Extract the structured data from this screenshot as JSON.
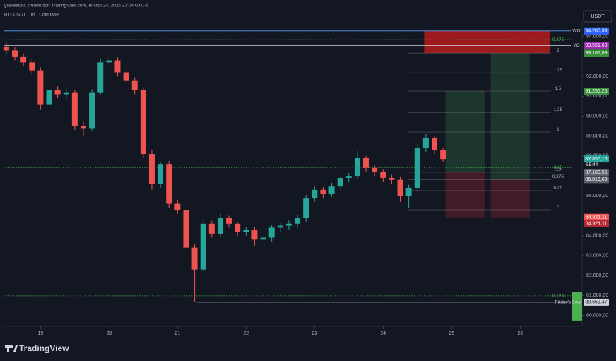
{
  "header": {
    "author_line": "yaslelstout creado con TradingView.com, el Nov 24, 2025 23:04 UTC-5",
    "symbol_line": "BTCUSDT · 1h · Coinbase",
    "currency": "USDT",
    "brand": "TradingView",
    "timer": "55:44"
  },
  "chart_data": {
    "type": "candlestick",
    "x": [
      18.5,
      18.625,
      18.75,
      18.875,
      19,
      19.125,
      19.25,
      19.375,
      19.5,
      19.625,
      19.75,
      19.875,
      20,
      20.125,
      20.25,
      20.375,
      20.5,
      20.625,
      20.75,
      20.875,
      21,
      21.125,
      21.25,
      21.375,
      21.5,
      21.625,
      21.75,
      21.875,
      22,
      22.125,
      22.25,
      22.375,
      22.5,
      22.625,
      22.75,
      22.875,
      23,
      23.125,
      23.25,
      23.375,
      23.5,
      23.625,
      23.75,
      23.875,
      24,
      24.125,
      24.25,
      24.375,
      24.5,
      24.625,
      24.75,
      24.875
    ],
    "open": [
      93500,
      93300,
      93000,
      92700,
      92300,
      90600,
      91300,
      91100,
      91200,
      89500,
      89400,
      91200,
      92700,
      92800,
      92200,
      91800,
      91300,
      88100,
      86600,
      87600,
      85600,
      85300,
      83400,
      82300,
      84600,
      84100,
      84900,
      84600,
      84200,
      84300,
      83800,
      83900,
      84400,
      84500,
      84600,
      84900,
      85900,
      86300,
      86100,
      86500,
      86900,
      87000,
      87900,
      87400,
      87200,
      86900,
      86800,
      86000,
      86400,
      88400,
      88900,
      88300
    ],
    "high": [
      93700,
      93450,
      93150,
      92850,
      92450,
      91500,
      91500,
      91400,
      91300,
      89700,
      91350,
      92850,
      93000,
      92950,
      92350,
      91950,
      91450,
      88300,
      87700,
      87750,
      85800,
      85450,
      83600,
      84850,
      84750,
      85100,
      85000,
      84700,
      84450,
      84450,
      84050,
      84550,
      84700,
      84750,
      85050,
      86050,
      86500,
      86450,
      86650,
      87050,
      87150,
      88250,
      88000,
      87550,
      87350,
      87050,
      86950,
      86550,
      88600,
      89100,
      89000,
      88400
    ],
    "low": [
      93100,
      92800,
      92500,
      92100,
      90350,
      90400,
      90900,
      90900,
      89300,
      89000,
      89250,
      91050,
      92500,
      92000,
      91600,
      91100,
      87900,
      86300,
      86400,
      85400,
      85100,
      83100,
      80659.47,
      82100,
      83900,
      83950,
      84400,
      84000,
      84000,
      83500,
      83600,
      83700,
      84200,
      84300,
      84400,
      84700,
      85700,
      85900,
      85950,
      86300,
      86700,
      86850,
      87200,
      87000,
      86700,
      86600,
      85700,
      85400,
      86200,
      88200,
      88100,
      87700
    ],
    "close": [
      93300,
      93000,
      92700,
      92300,
      90600,
      91300,
      91100,
      91200,
      89500,
      89400,
      91200,
      92700,
      92800,
      92200,
      91800,
      91300,
      88100,
      86600,
      87600,
      85600,
      85300,
      83400,
      82300,
      84600,
      84100,
      84900,
      84600,
      84200,
      84300,
      83800,
      83900,
      84400,
      84500,
      84600,
      84900,
      85900,
      86300,
      86100,
      86500,
      86900,
      87000,
      87900,
      87400,
      87200,
      86900,
      86800,
      86000,
      86400,
      88400,
      88900,
      88300,
      87850.16
    ],
    "up_color": "#26a69a",
    "down_color": "#ef5350",
    "xlim": [
      18.46,
      26.74
    ],
    "xticks": [
      19,
      20,
      21,
      22,
      23,
      24,
      25,
      26
    ],
    "ylim": [
      79450,
      94770
    ],
    "yticks": [
      {
        "value": 94000,
        "label": "94.000,00"
      },
      {
        "value": 92000,
        "label": "92.000,00"
      },
      {
        "value": 91000,
        "label": "91.000,00"
      },
      {
        "value": 90000,
        "label": "90.000,00"
      },
      {
        "value": 89000,
        "label": "89.000,00"
      },
      {
        "value": 88000,
        "label": "88.000,00"
      },
      {
        "value": 86000,
        "label": "86.000,00"
      },
      {
        "value": 84000,
        "label": "84.000,00"
      },
      {
        "value": 83000,
        "label": "83.000,00"
      },
      {
        "value": 82000,
        "label": "82.000,00"
      },
      {
        "value": 81000,
        "label": "81.000,00"
      },
      {
        "value": 80000,
        "label": "80.000,00"
      }
    ],
    "lines": [
      {
        "label": "WO",
        "value": 94280.99,
        "color": "#5b9cf6",
        "style": "solid"
      },
      {
        "label": "0,375",
        "value": 93844,
        "color": "#4caf50",
        "style": "dotted"
      },
      {
        "label": "YO",
        "value": 93551.63,
        "color": "#d1d4dc",
        "style": "solid"
      },
      {
        "label": "0,25",
        "value": 87420,
        "color": "#4caf50",
        "style": "dotted"
      },
      {
        "label": "0,125",
        "value": 80980,
        "color": "#4caf50",
        "style": "dotted"
      }
    ],
    "fib": {
      "x_range": [
        24.36,
        26.45
      ],
      "color": "#787b86",
      "levels": [
        {
          "label": "2",
          "value": 93167.09
        },
        {
          "label": "1,75",
          "value": 92177
        },
        {
          "label": "1,5",
          "value": 91255.26
        },
        {
          "label": "1,25",
          "value": 90190
        },
        {
          "label": "1",
          "value": 89200
        },
        {
          "label": "0,5",
          "value": 87180.55
        },
        {
          "label": "0,375",
          "value": 86813.63
        },
        {
          "label": "0,25",
          "value": 86260
        },
        {
          "label": "0",
          "value": 85300
        }
      ]
    },
    "zones": [
      {
        "x": [
          24.6,
          26.43
        ],
        "y": [
          93167.09,
          94280.99
        ],
        "color": "#b71c1c"
      },
      {
        "x": [
          24.91,
          25.48
        ],
        "y": [
          87180.55,
          91255.26
        ],
        "color": "#1e3b2f"
      },
      {
        "x": [
          24.91,
          25.48
        ],
        "y": [
          84921.11,
          87180.55
        ],
        "color": "#4a1c28"
      },
      {
        "x": [
          25.57,
          26.14
        ],
        "y": [
          86813.63,
          93167.09
        ],
        "color": "#1e3b2f"
      },
      {
        "x": [
          25.57,
          26.14
        ],
        "y": [
          84921.11,
          86813.63
        ],
        "color": "#4a1c28"
      }
    ],
    "price_tags": [
      {
        "label": "94.280,99",
        "value": 94280.99,
        "color": "#2962ff"
      },
      {
        "label": "93.551,63",
        "value": 93551.63,
        "color": "#9c27b0"
      },
      {
        "label": "93.167,09",
        "value": 93167.09,
        "color": "#388e3c"
      },
      {
        "label": "91.255,26",
        "value": 91255.26,
        "color": "#388e3c"
      },
      {
        "label": "87.850,16",
        "value": 87850.16,
        "color": "#26a69a"
      },
      {
        "label": "87.180,55",
        "value": 87180.55,
        "color": "#5d606b"
      },
      {
        "label": "86.813,63",
        "value": 86813.63,
        "color": "#5d606b"
      },
      {
        "label": "84.921,11",
        "value": 84921.11,
        "color": "#ef5350"
      },
      {
        "label": "84.921,11",
        "value": 84921.11,
        "color": "#b22833"
      },
      {
        "label": "80.659,47",
        "value": 80659.47,
        "color": "#d1d4dc"
      }
    ],
    "friday_low": {
      "label": "Friday's Low",
      "x": 21.28,
      "value": 80659.47,
      "color": "#4caf50"
    }
  }
}
